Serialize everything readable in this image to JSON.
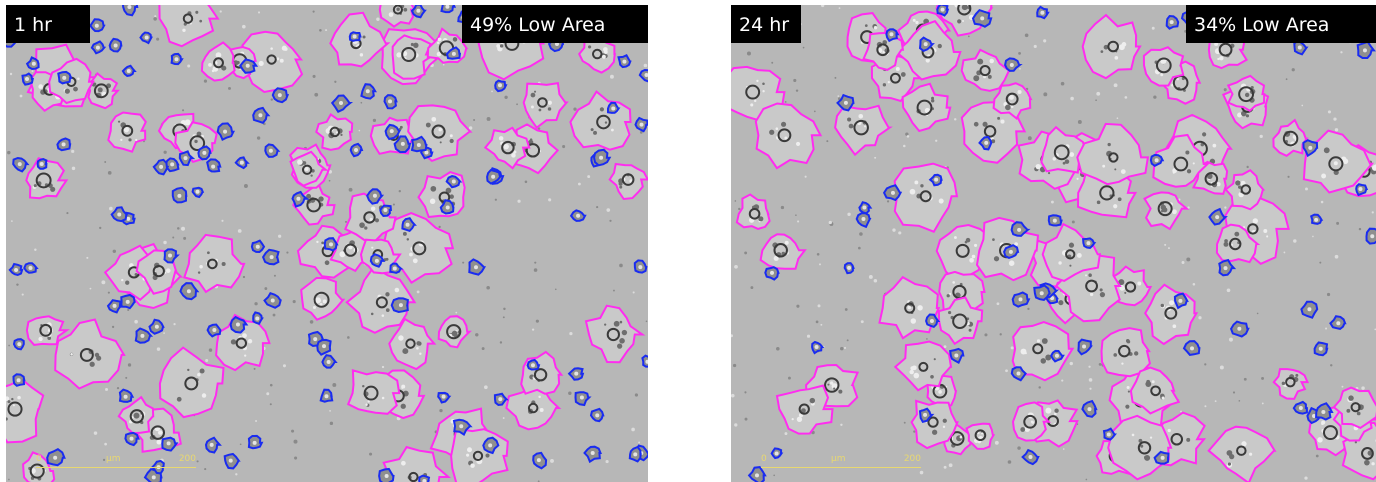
{
  "panels": [
    {
      "time": "1 hr",
      "area": "49% Low Area",
      "scale": {
        "start": "0",
        "unit": "μm",
        "end": "200"
      }
    },
    {
      "time": "24 hr",
      "area": "34% Low Area",
      "scale": {
        "start": "0",
        "unit": "μm",
        "end": "200"
      }
    }
  ]
}
